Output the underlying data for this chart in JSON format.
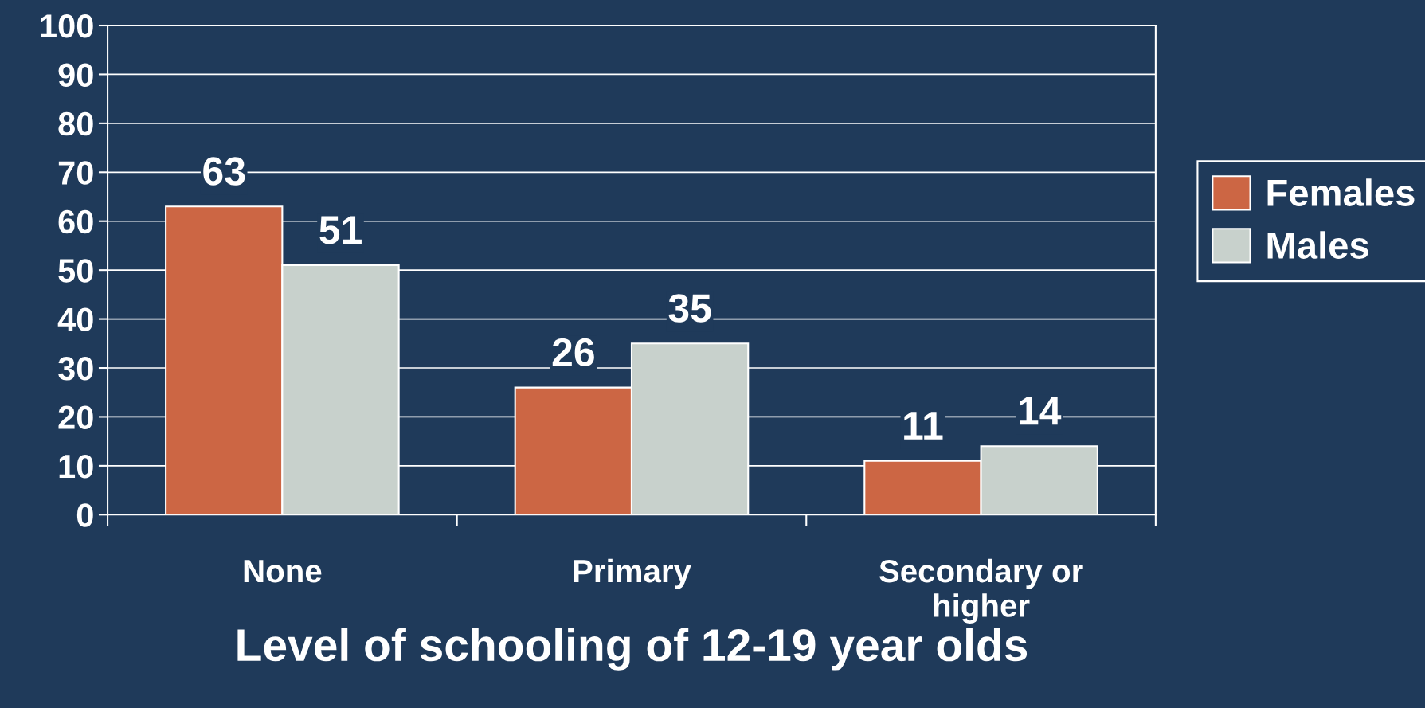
{
  "chart_data": {
    "type": "bar",
    "xlabel": "Level of schooling of 12-19 year olds",
    "categories": [
      "None",
      "Primary",
      "Secondary or\nhigher"
    ],
    "series": [
      {
        "name": "Females",
        "color": "#cc6644",
        "values": [
          63,
          26,
          11
        ]
      },
      {
        "name": "Males",
        "color": "#c8d1cc",
        "values": [
          51,
          35,
          14
        ]
      }
    ],
    "ylim": [
      0,
      100
    ],
    "yticks": [
      0,
      10,
      20,
      30,
      40,
      50,
      60,
      70,
      80,
      90,
      100
    ],
    "grid": "y",
    "legend": "right",
    "data_labels": true
  }
}
